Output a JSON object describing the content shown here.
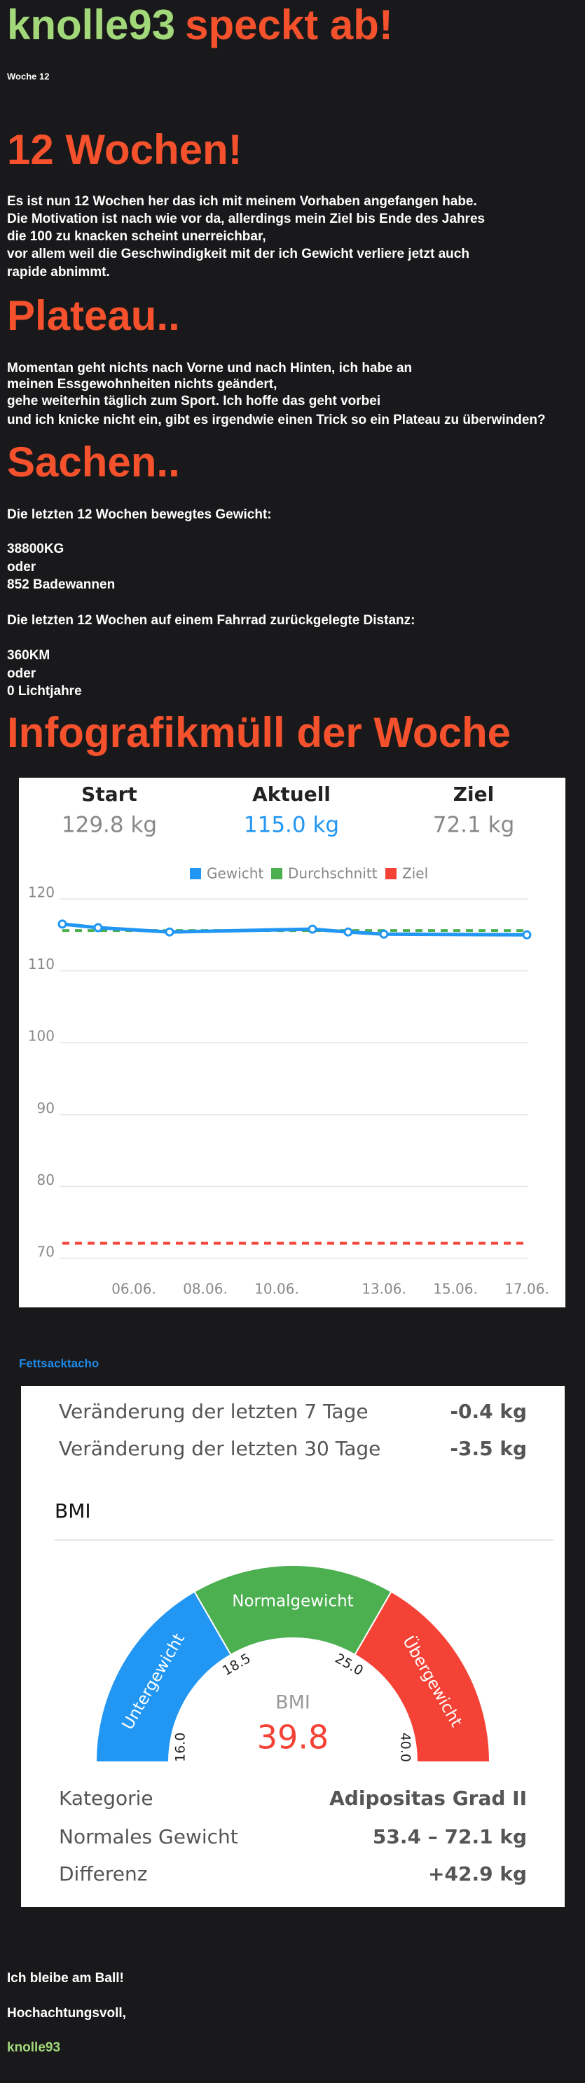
{
  "header": {
    "title_user": "knolle93",
    "title_rest": "speckt ab!",
    "subtitle": "Woche 12"
  },
  "sections": [
    {
      "heading": "12 Wochen!",
      "lines": [
        "Es ist nun 12 Wochen her das ich mit meinem Vorhaben angefangen habe.",
        "Die Motivation ist nach wie vor da, allerdings mein Ziel bis Ende des Jahres",
        "die 100 zu knacken scheint unerreichbar,",
        "vor allem weil die Geschwindigkeit mit der ich Gewicht verliere jetzt auch",
        "rapide abnimmt."
      ]
    },
    {
      "heading": "Plateau..",
      "lines": [
        "Momentan geht nichts nach Vorne und nach Hinten, ich habe an",
        "meinen Essgewohnheiten nichts geändert,",
        "gehe weiterhin täglich zum Sport. Ich hoffe das geht vorbei",
        "und ich knicke nicht ein, gibt es irgendwie einen Trick so ein Plateau zu überwinden?"
      ]
    },
    {
      "heading": "Sachen..",
      "lines": [
        "Die letzten 12 Wochen bewegtes Gewicht:",
        "38800KG",
        "oder",
        "852 Badewannen",
        "Die letzten 12 Wochen auf einem Fahrrad zurückgelegte Distanz:",
        "360KM",
        "oder",
        "0 Lichtjahre"
      ]
    }
  ],
  "infographic_heading": "Infografikmüll der Woche",
  "summary": [
    {
      "label": "Start",
      "value": "129.8 kg"
    },
    {
      "label": "Aktuell",
      "value": "115.0 kg"
    },
    {
      "label": "Ziel",
      "value": "72.1 kg"
    }
  ],
  "chart_data": {
    "type": "line",
    "x": [
      4,
      5,
      7,
      11,
      12,
      13,
      17
    ],
    "series": [
      {
        "name": "Gewicht",
        "color": "#2196f3",
        "values": [
          116.5,
          116.0,
          115.4,
          115.8,
          115.4,
          115.1,
          115.0
        ]
      },
      {
        "name": "Durchschnitt",
        "color": "#4caf50",
        "values": [
          115.6,
          115.6,
          115.6,
          115.6,
          115.6,
          115.6,
          115.6
        ]
      },
      {
        "name": "Ziel",
        "color": "#f44336",
        "values": [
          72.1,
          72.1,
          72.1,
          72.1,
          72.1,
          72.1,
          72.1
        ]
      }
    ],
    "xlim": [
      4,
      17
    ],
    "xticks": [
      {
        "value": 6,
        "label": "06.06."
      },
      {
        "value": 8,
        "label": "08.06."
      },
      {
        "value": 10,
        "label": "10.06."
      },
      {
        "value": 13,
        "label": "13.06."
      },
      {
        "value": 15,
        "label": "15.06."
      },
      {
        "value": 17,
        "label": "17.06."
      }
    ],
    "ylim": [
      70,
      120
    ],
    "yticks": [
      70,
      80,
      90,
      100,
      110,
      120
    ],
    "grid": true
  },
  "tacho": {
    "link": "Fettsacktacho",
    "changes": [
      {
        "label": "Veränderung der letzten 7 Tage",
        "value": "-0.4 kg"
      },
      {
        "label": "Veränderung der letzten 30 Tage",
        "value": "-3.5 kg"
      }
    ],
    "gauge": {
      "title": "BMI",
      "label": "BMI",
      "value": 39.8,
      "segments": [
        {
          "name": "Untergewicht",
          "color": "#2196f3"
        },
        {
          "name": "Normalgewicht",
          "color": "#4caf50"
        },
        {
          "name": "Übergewicht",
          "color": "#f44336"
        }
      ],
      "ticks": [
        {
          "value": 16,
          "label": "16.0"
        },
        18.5,
        {
          "value": 25,
          "label": "25.0"
        },
        {
          "value": 40,
          "label": "40.0"
        }
      ]
    },
    "details": [
      {
        "label": "Kategorie",
        "value": "Adipositas Grad II"
      },
      {
        "label": "Normales Gewicht",
        "value": "53.4 – 72.1 kg"
      },
      {
        "label": "Differenz",
        "value": "+42.9 kg"
      }
    ]
  },
  "footer": {
    "lines": [
      "Ich bleibe am Ball!",
      "Hochachtungsvoll,"
    ],
    "signature": "knolle93"
  }
}
